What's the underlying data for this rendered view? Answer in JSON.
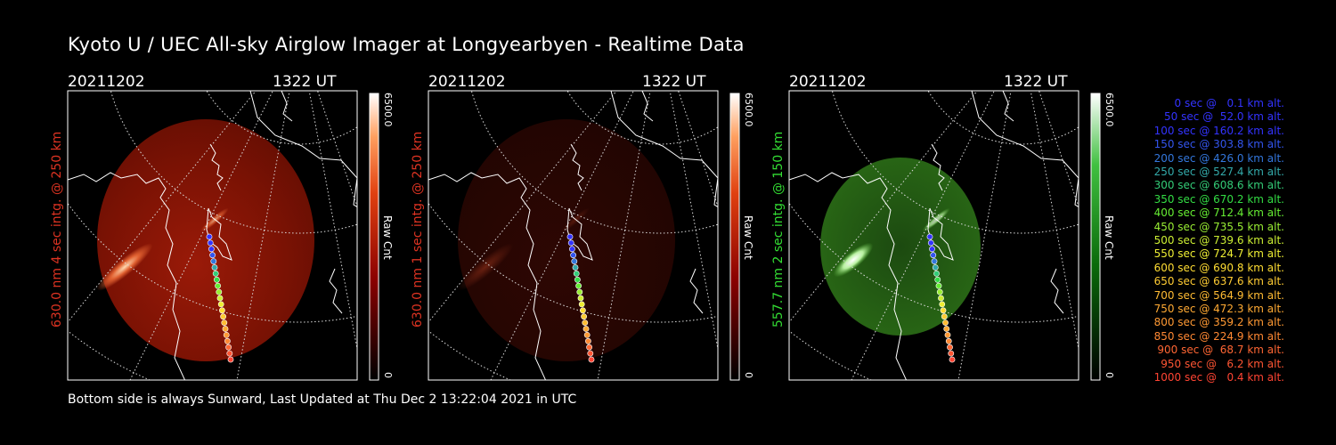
{
  "title": "Kyoto U / UEC All-sky Airglow Imager at Longyearbyen - Realtime Data",
  "footer": "Bottom side is always Sunward, Last Updated at Thu Dec  2 13:22:04 2021 in UTC",
  "colors": {
    "red_channel": "#c83010",
    "green_channel": "#2a8a1a",
    "green_label": "#33dd33",
    "red_label": "#dd3322"
  },
  "chart_data": [
    {
      "type": "heatmap",
      "date": "20211202",
      "time": "1322 UT",
      "ylabel": "630.0 nm 4 sec intg. @ 250 km",
      "colorbar": {
        "max_label": "6500.0",
        "min_label": "0",
        "unit": "Raw Cnt",
        "range": [
          0,
          6500
        ],
        "colormap": "red"
      }
    },
    {
      "type": "heatmap",
      "date": "20211202",
      "time": "1322 UT",
      "ylabel": "630.0 nm 1 sec intg. @ 250 km",
      "colorbar": {
        "max_label": "6500.0",
        "min_label": "0",
        "unit": "Raw Cnt",
        "range": [
          0,
          6500
        ],
        "colormap": "red"
      }
    },
    {
      "type": "heatmap",
      "date": "20211202",
      "time": "1322 UT",
      "ylabel": "557.7 nm 2 sec intg. @ 150 km",
      "colorbar": {
        "max_label": "6500.0",
        "min_label": "0",
        "unit": "Raw Cnt",
        "range": [
          0,
          6500
        ],
        "colormap": "green"
      }
    }
  ],
  "trajectory_legend": [
    {
      "text": "0 sec @   0.1 km alt.",
      "color": "#3333ff"
    },
    {
      "text": "50 sec @  52.0 km alt.",
      "color": "#3333ff"
    },
    {
      "text": "100 sec @ 160.2 km alt.",
      "color": "#3333ff"
    },
    {
      "text": "150 sec @ 303.8 km alt.",
      "color": "#3355ee"
    },
    {
      "text": "200 sec @ 426.0 km alt.",
      "color": "#3377dd"
    },
    {
      "text": "250 sec @ 527.4 km alt.",
      "color": "#33aaaa"
    },
    {
      "text": "300 sec @ 608.6 km alt.",
      "color": "#33cc77"
    },
    {
      "text": "350 sec @ 670.2 km alt.",
      "color": "#33dd44"
    },
    {
      "text": "400 sec @ 712.4 km alt.",
      "color": "#66ee33"
    },
    {
      "text": "450 sec @ 735.5 km alt.",
      "color": "#99ee33"
    },
    {
      "text": "500 sec @ 739.6 km alt.",
      "color": "#ccee33"
    },
    {
      "text": "550 sec @ 724.7 km alt.",
      "color": "#eeee33"
    },
    {
      "text": "600 sec @ 690.8 km alt.",
      "color": "#ffdd33"
    },
    {
      "text": "650 sec @ 637.6 km alt.",
      "color": "#ffcc33"
    },
    {
      "text": "700 sec @ 564.9 km alt.",
      "color": "#ffbb33"
    },
    {
      "text": "750 sec @ 472.3 km alt.",
      "color": "#ffaa33"
    },
    {
      "text": "800 sec @ 359.2 km alt.",
      "color": "#ff9933"
    },
    {
      "text": "850 sec @ 224.9 km alt.",
      "color": "#ff8833"
    },
    {
      "text": "900 sec @  68.7 km alt.",
      "color": "#ff6633"
    },
    {
      "text": "950 sec @   6.2 km alt.",
      "color": "#ff5533"
    },
    {
      "text": "1000 sec @   0.4 km alt.",
      "color": "#ff4433"
    }
  ]
}
